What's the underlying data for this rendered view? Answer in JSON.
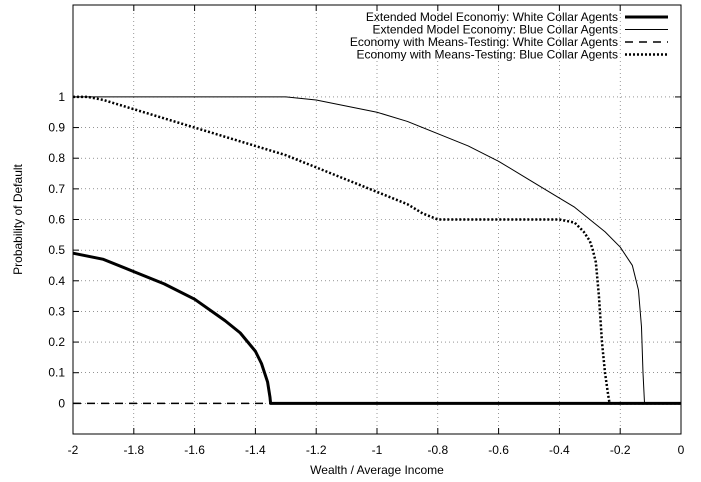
{
  "chart_data": {
    "type": "line",
    "title": "",
    "xlabel": "Wealth / Average Income",
    "ylabel": "Probability of Default",
    "xlim": [
      -2,
      0
    ],
    "ylim": [
      -0.1,
      1.3
    ],
    "xticks": [
      -2,
      -1.8,
      -1.6,
      -1.4,
      -1.2,
      -1,
      -0.8,
      -0.6,
      -0.4,
      -0.2,
      0
    ],
    "xtick_labels": [
      "-2",
      "-1.8",
      "-1.6",
      "-1.4",
      "-1.2",
      "-1",
      "-0.8",
      "-0.6",
      "-0.4",
      "-0.2",
      "0"
    ],
    "yticks": [
      0,
      0.1,
      0.2,
      0.3,
      0.4,
      0.5,
      0.6,
      0.7,
      0.8,
      0.9,
      1
    ],
    "ytick_labels": [
      "0",
      "0.1",
      "0.2",
      "0.3",
      "0.4",
      "0.5",
      "0.6",
      "0.7",
      "0.8",
      "0.9",
      "1"
    ],
    "grid": true,
    "legend_position": "top-right",
    "series": [
      {
        "name": "Extended Model Economy: White Collar Agents",
        "style": "thick",
        "x": [
          -2,
          -1.9,
          -1.8,
          -1.7,
          -1.6,
          -1.5,
          -1.45,
          -1.4,
          -1.38,
          -1.36,
          -1.352,
          -1.35,
          -1.3,
          -1.2,
          -1,
          -0.8,
          -0.6,
          -0.4,
          -0.2,
          0
        ],
        "y": [
          0.49,
          0.47,
          0.43,
          0.39,
          0.34,
          0.27,
          0.23,
          0.17,
          0.13,
          0.07,
          0.02,
          0,
          0,
          0,
          0,
          0,
          0,
          0,
          0,
          0
        ]
      },
      {
        "name": "Extended Model Economy: Blue Collar Agents",
        "style": "thin",
        "x": [
          -2,
          -1.8,
          -1.6,
          -1.4,
          -1.3,
          -1.2,
          -1.1,
          -1.0,
          -0.9,
          -0.8,
          -0.7,
          -0.6,
          -0.5,
          -0.4,
          -0.35,
          -0.3,
          -0.25,
          -0.2,
          -0.16,
          -0.14,
          -0.13,
          -0.125,
          -0.12,
          -0.1,
          0
        ],
        "y": [
          1,
          1,
          1,
          1,
          1,
          0.99,
          0.97,
          0.95,
          0.92,
          0.88,
          0.84,
          0.79,
          0.73,
          0.67,
          0.64,
          0.6,
          0.56,
          0.51,
          0.45,
          0.37,
          0.25,
          0.1,
          0,
          0,
          0
        ]
      },
      {
        "name": "Economy with Means-Testing: White Collar Agents",
        "style": "dashed",
        "x": [
          -2,
          -1.8,
          -1.6,
          -1.4,
          -1.2,
          -1,
          -0.8,
          -0.6,
          -0.4,
          -0.2,
          0
        ],
        "y": [
          0,
          0,
          0,
          0,
          0,
          0,
          0,
          0,
          0,
          0,
          0
        ]
      },
      {
        "name": "Economy with Means-Testing: Blue Collar Agents",
        "style": "dotted",
        "x": [
          -2,
          -1.95,
          -1.9,
          -1.8,
          -1.7,
          -1.6,
          -1.5,
          -1.4,
          -1.3,
          -1.2,
          -1.1,
          -1.0,
          -0.9,
          -0.85,
          -0.8,
          -0.7,
          -0.6,
          -0.5,
          -0.4,
          -0.35,
          -0.32,
          -0.3,
          -0.29,
          -0.28,
          -0.27,
          -0.26,
          -0.25,
          -0.24,
          -0.235,
          -0.2,
          0
        ],
        "y": [
          1,
          1,
          0.99,
          0.96,
          0.93,
          0.9,
          0.87,
          0.84,
          0.81,
          0.77,
          0.73,
          0.69,
          0.65,
          0.62,
          0.6,
          0.6,
          0.6,
          0.6,
          0.6,
          0.59,
          0.56,
          0.53,
          0.5,
          0.46,
          0.35,
          0.2,
          0.1,
          0.03,
          0,
          0,
          0
        ]
      }
    ]
  }
}
